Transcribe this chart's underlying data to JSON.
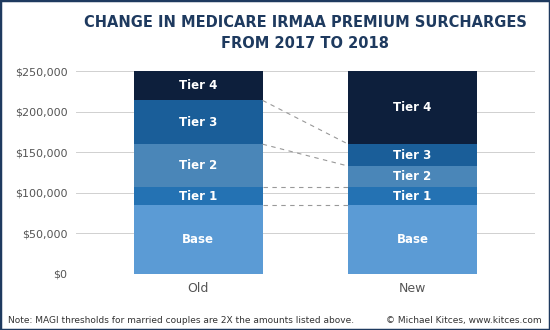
{
  "title": "CHANGE IN MEDICARE IRMAA PREMIUM SURCHARGES\nFROM 2017 TO 2018",
  "title_fontsize": 10.5,
  "background_color": "#ffffff",
  "border_color": "#1e3a5f",
  "bars": {
    "Old": {
      "Base": 85000,
      "Tier 1": 22000,
      "Tier 2": 53000,
      "Tier 3": 54000,
      "Tier 4": 36000
    },
    "New": {
      "Base": 85000,
      "Tier 1": 22000,
      "Tier 2": 26000,
      "Tier 3": 27000,
      "Tier 4": 90000
    }
  },
  "tier_colors": {
    "Base": "#5b9bd5",
    "Tier 1": "#2472b3",
    "Tier 2": "#4a86b8",
    "Tier 3": "#1a5e99",
    "Tier 4": "#0d1f3c"
  },
  "dashed_line_levels_old": [
    85000,
    107000,
    160000,
    214000
  ],
  "dashed_line_levels_new": [
    85000,
    107000,
    133000,
    160000
  ],
  "ylim": [
    0,
    265000
  ],
  "yticks": [
    0,
    50000,
    100000,
    150000,
    200000,
    250000
  ],
  "ytick_labels": [
    "$0",
    "$50,000",
    "$100,000",
    "$150,000",
    "$200,000",
    "$250,000"
  ],
  "bar_width": 0.42,
  "bar_positions": [
    0.3,
    1.0
  ],
  "bar_labels": [
    "Old",
    "New"
  ],
  "note": "Note: MAGI thresholds for married couples are 2X the amounts listed above.",
  "credit": "© Michael Kitces, www.kitces.com",
  "note_fontsize": 6.5,
  "label_fontsize": 9,
  "tick_fontsize": 8,
  "grid_color": "#d0d0d0",
  "text_color_dark": "#1e3a5f",
  "bar_label_fontsize": 8.5
}
